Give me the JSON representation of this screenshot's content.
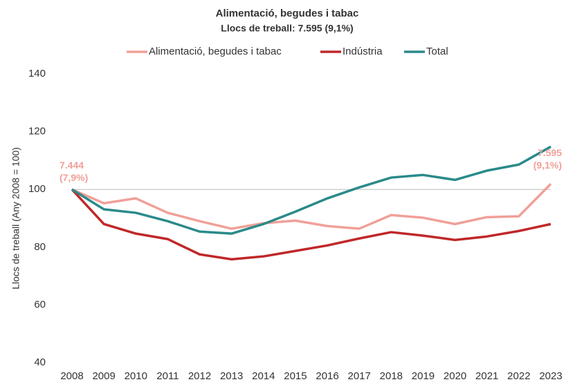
{
  "chart_data": {
    "type": "line",
    "title": "Alimentació,  begudes i tabac",
    "subtitle": "Llocs de treball: 7.595 (9,1%)",
    "y_label": "Llocs de treball (Any 2008 = 100)",
    "categories": [
      "2008",
      "2009",
      "2010",
      "2011",
      "2012",
      "2013",
      "2014",
      "2015",
      "2016",
      "2017",
      "2018",
      "2019",
      "2020",
      "2021",
      "2022",
      "2023"
    ],
    "series": [
      {
        "name": "Alimentació, begudes i tabac",
        "color": "#f0a098",
        "values": [
          100,
          95.2,
          96.9,
          91.9,
          89,
          86.4,
          88.3,
          89.2,
          87.3,
          86.4,
          91.1,
          90.2,
          88,
          90.4,
          90.7,
          101.9
        ]
      },
      {
        "name": "Indústria",
        "color": "#c0282a",
        "values": [
          100,
          88,
          84.7,
          82.8,
          77.5,
          75.8,
          76.8,
          78.7,
          80.6,
          83,
          85.2,
          84,
          82.5,
          83.7,
          85.6,
          88
        ]
      },
      {
        "name": "Total",
        "color": "#2a8a8a",
        "values": [
          100,
          93.1,
          91.9,
          89,
          85.4,
          84.7,
          88,
          92.3,
          96.9,
          100.7,
          104.1,
          105,
          103.3,
          106.5,
          108.6,
          114.8
        ]
      }
    ],
    "annotations": [
      {
        "lines": [
          "7.444",
          "(7,9%)"
        ]
      },
      {
        "lines": [
          "7.595",
          "(9,1%)"
        ]
      }
    ],
    "annotation_color": "#f0a098",
    "reference_line": 100,
    "ylim": [
      40,
      140
    ],
    "yticks": [
      40,
      60,
      80,
      100,
      120,
      140
    ],
    "legend": "top"
  }
}
